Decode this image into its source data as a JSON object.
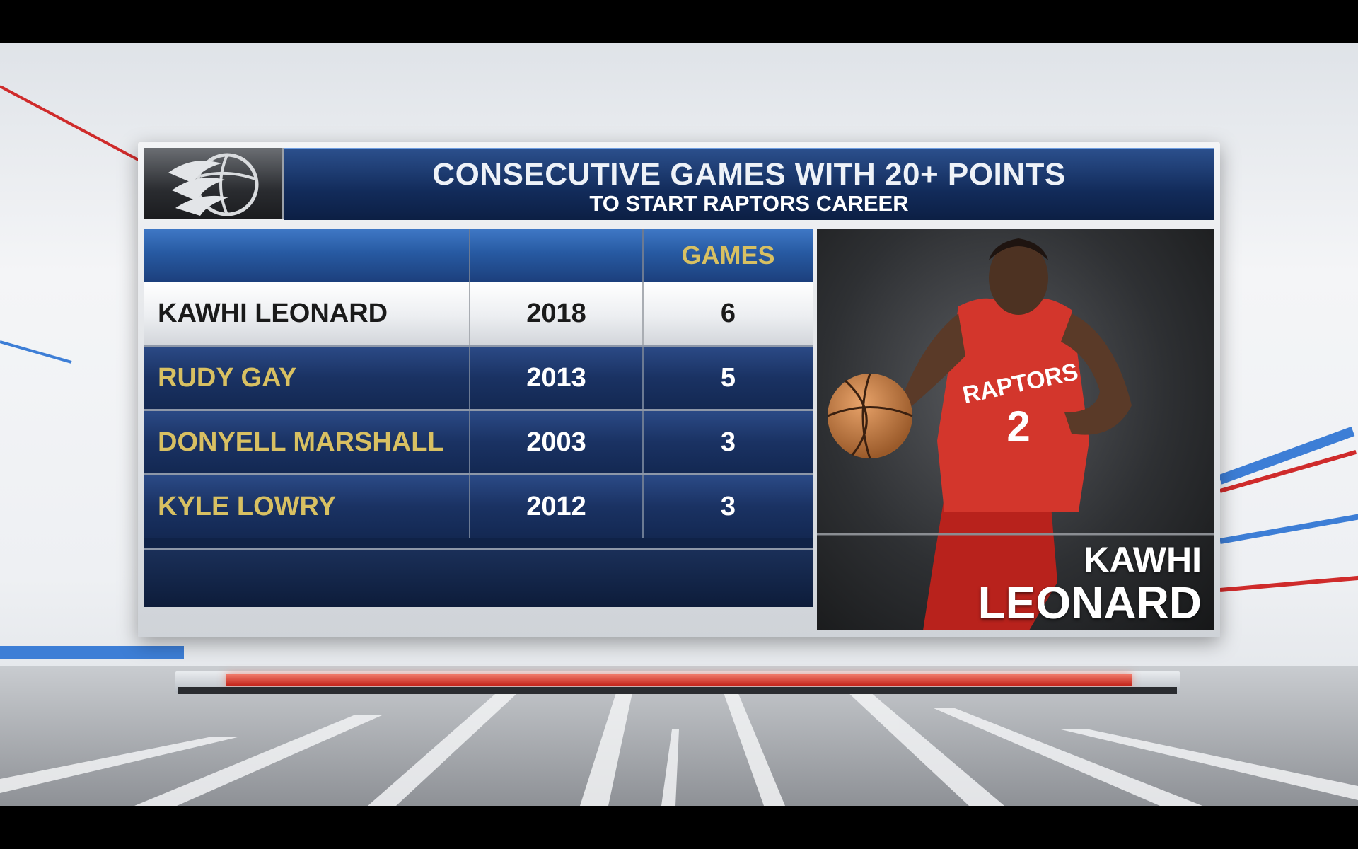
{
  "graphic": {
    "title": "CONSECUTIVE GAMES WITH 20+ POINTS",
    "subtitle": "TO START RAPTORS CAREER"
  },
  "table": {
    "headers": [
      "",
      "",
      "GAMES"
    ],
    "rows": [
      {
        "name": "KAWHI LEONARD",
        "year": "2018",
        "games": "6",
        "highlighted": true
      },
      {
        "name": "RUDY GAY",
        "year": "2013",
        "games": "5",
        "highlighted": false
      },
      {
        "name": "DONYELL MARSHALL",
        "year": "2003",
        "games": "3",
        "highlighted": false
      },
      {
        "name": "KYLE LOWRY",
        "year": "2012",
        "games": "3",
        "highlighted": false
      }
    ]
  },
  "player": {
    "first_name": "KAWHI",
    "last_name": "LEONARD",
    "jersey_text": "RAPTORS",
    "jersey_number": "2"
  },
  "colors": {
    "gold": "#d8c062",
    "navy": "#132852",
    "raptors_red": "#c9312b"
  },
  "icons": {
    "logo": "raptors-claw-ball-logo"
  }
}
